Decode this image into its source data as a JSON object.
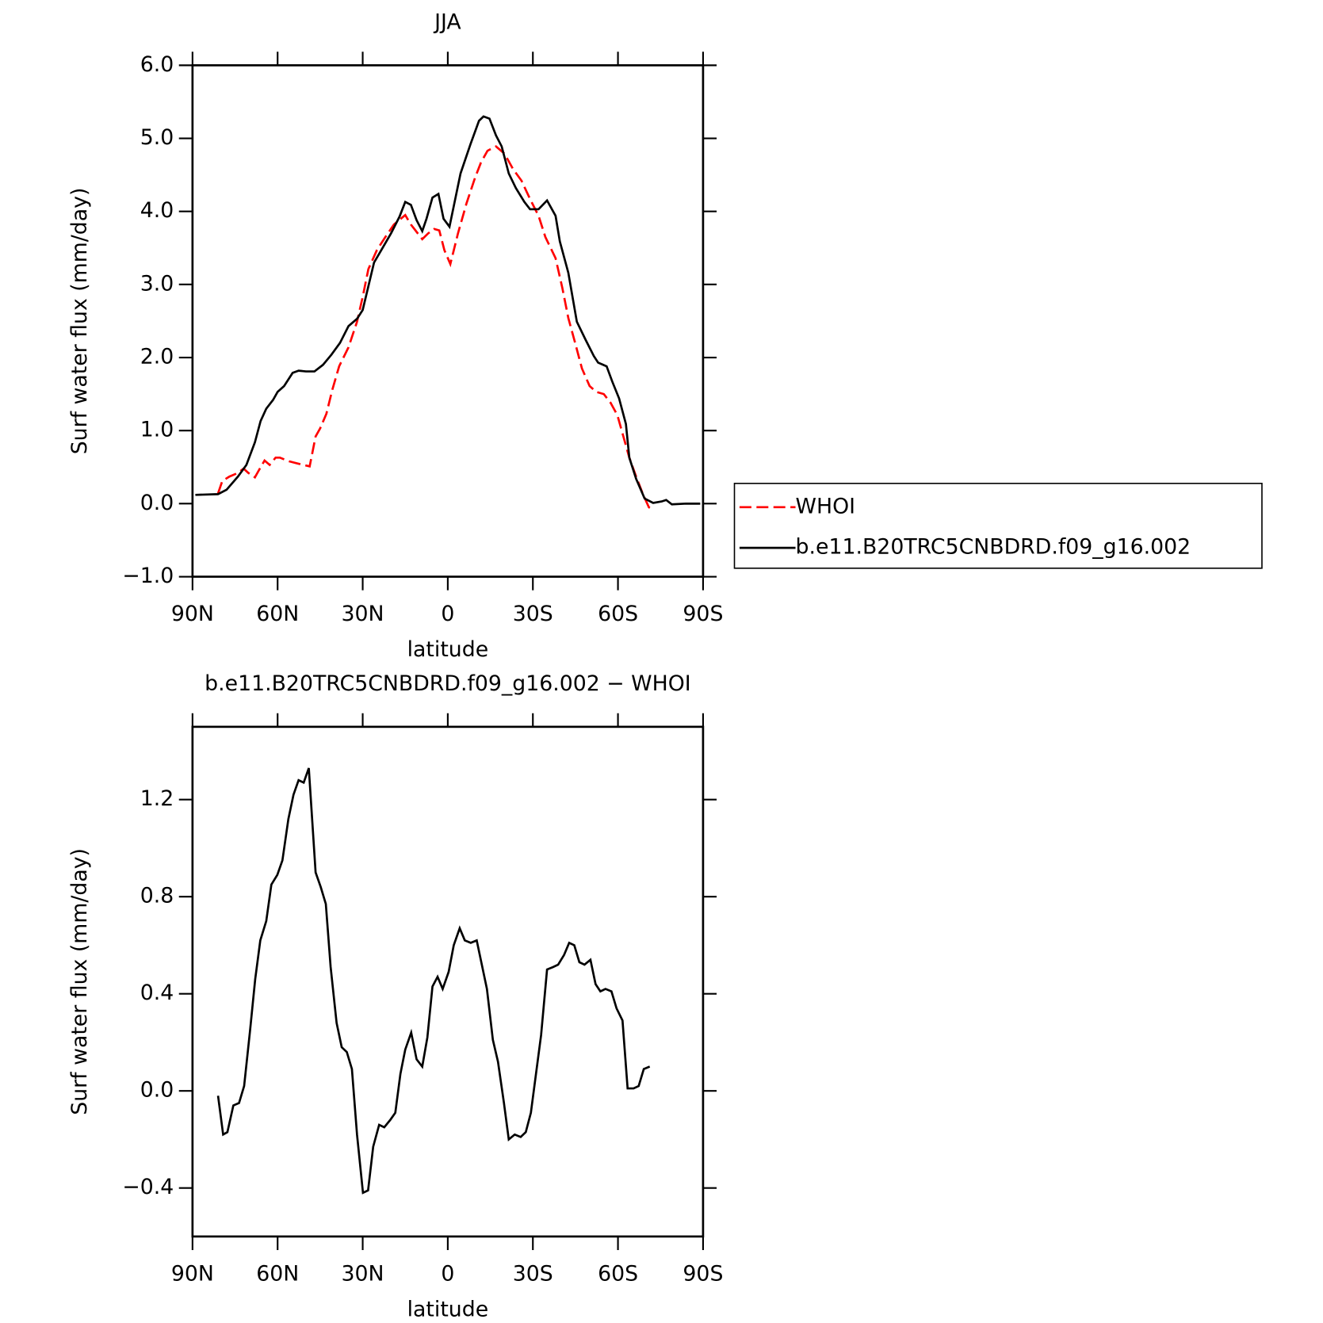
{
  "chart_data": [
    {
      "type": "line",
      "title": "JJA",
      "xlabel": "latitude",
      "ylabel": "Surf water flux (mm/day)",
      "xlim": [
        90,
        -90
      ],
      "xticks": [
        {
          "value": 90,
          "label": "90N"
        },
        {
          "value": 60,
          "label": "60N"
        },
        {
          "value": 30,
          "label": "30N"
        },
        0,
        {
          "value": -30,
          "label": "30S"
        },
        {
          "value": -60,
          "label": "60S"
        },
        {
          "value": -90,
          "label": "90S"
        }
      ],
      "ylim": [
        -1,
        6
      ],
      "yticks": [
        {
          "value": -1,
          "label": "−1.0"
        },
        {
          "value": 0,
          "label": "0.0"
        },
        {
          "value": 1,
          "label": "1.0"
        },
        {
          "value": 2,
          "label": "2.0"
        },
        {
          "value": 3,
          "label": "3.0"
        },
        {
          "value": 4,
          "label": "4.0"
        },
        {
          "value": 5,
          "label": "5.0"
        },
        {
          "value": 6,
          "label": "6.0"
        }
      ],
      "legend": "right",
      "series": [
        {
          "name": "WHOI",
          "color": "#ff0000",
          "dashed": true,
          "x": [
            81,
            79.5,
            77,
            74,
            72,
            70.3,
            68,
            66.7,
            64.6,
            62.8,
            60.7,
            59.2,
            56,
            53,
            50.8,
            48.7,
            46.6,
            45,
            42.8,
            40.7,
            38.3,
            35,
            32,
            30,
            28,
            25,
            22,
            19,
            15,
            13,
            9,
            6.9,
            4.8,
            3,
            1.2,
            -0.9,
            -3.6,
            -6.6,
            -9.6,
            -11.7,
            -14,
            -17,
            -20,
            -23,
            -26,
            -29,
            -32,
            -34.4,
            -38,
            -40.4,
            -42.5,
            -44.9,
            -47.3,
            -50,
            -52.3,
            -55,
            -57.4,
            -59.8,
            -61.9,
            -64,
            -66.4,
            -68.8,
            -70.9,
            -71.8
          ],
          "values": [
            0.14,
            0.31,
            0.37,
            0.42,
            0.48,
            0.42,
            0.36,
            0.45,
            0.59,
            0.53,
            0.63,
            0.63,
            0.58,
            0.55,
            0.53,
            0.51,
            0.92,
            1.03,
            1.23,
            1.56,
            1.88,
            2.14,
            2.49,
            2.83,
            3.21,
            3.47,
            3.65,
            3.82,
            3.95,
            3.82,
            3.62,
            3.7,
            3.76,
            3.74,
            3.47,
            3.28,
            3.7,
            4.11,
            4.46,
            4.67,
            4.83,
            4.89,
            4.79,
            4.58,
            4.42,
            4.17,
            3.94,
            3.65,
            3.36,
            2.95,
            2.54,
            2.2,
            1.85,
            1.61,
            1.53,
            1.5,
            1.38,
            1.21,
            0.92,
            0.63,
            0.37,
            0.13,
            -0.05,
            -0.07
          ]
        },
        {
          "name": "b.e11.B20TRC5CNBDRD.f09_g16.002",
          "color": "#000000",
          "dashed": false,
          "x": [
            89,
            81,
            78,
            74,
            71,
            68,
            66,
            64,
            61.6,
            60,
            57.7,
            54.7,
            52.6,
            50,
            47,
            44,
            41,
            38,
            35,
            32,
            30,
            26,
            23,
            20,
            17,
            15,
            13,
            11,
            9,
            7.5,
            5.4,
            3.3,
            1.5,
            -0.6,
            -4.5,
            -8,
            -11,
            -12.6,
            -14.7,
            -17,
            -19,
            -21.5,
            -24,
            -27,
            -29,
            -32,
            -35,
            -38,
            -39.5,
            -42.5,
            -45.5,
            -48.5,
            -51.5,
            -53,
            -56,
            -58,
            -60.4,
            -62.8,
            -64,
            -66.4,
            -69.4,
            -72.4,
            -75.4,
            -77,
            -79,
            -84,
            -89
          ],
          "values": [
            0.12,
            0.13,
            0.19,
            0.37,
            0.53,
            0.84,
            1.13,
            1.3,
            1.42,
            1.53,
            1.61,
            1.79,
            1.82,
            1.81,
            1.81,
            1.9,
            2.04,
            2.2,
            2.43,
            2.53,
            2.65,
            3.3,
            3.5,
            3.7,
            3.93,
            4.13,
            4.09,
            3.88,
            3.73,
            3.9,
            4.19,
            4.24,
            3.9,
            3.79,
            4.52,
            4.92,
            5.24,
            5.3,
            5.27,
            5.04,
            4.89,
            4.52,
            4.32,
            4.13,
            4.03,
            4.03,
            4.15,
            3.94,
            3.59,
            3.16,
            2.49,
            2.25,
            2.02,
            1.93,
            1.88,
            1.67,
            1.44,
            1.09,
            0.63,
            0.34,
            0.07,
            0.01,
            0.03,
            0.05,
            -0.01,
            0,
            0
          ]
        }
      ]
    },
    {
      "type": "line",
      "title": "b.e11.B20TRC5CNBDRD.f09_g16.002 − WHOI",
      "xlabel": "latitude",
      "ylabel": "Surf water flux (mm/day)",
      "xlim": [
        90,
        -90
      ],
      "xticks": [
        {
          "value": 90,
          "label": "90N"
        },
        {
          "value": 60,
          "label": "60N"
        },
        {
          "value": 30,
          "label": "30N"
        },
        0,
        {
          "value": -30,
          "label": "30S"
        },
        {
          "value": -60,
          "label": "60S"
        },
        {
          "value": -90,
          "label": "90S"
        }
      ],
      "ylim": [
        -0.6,
        1.5
      ],
      "yticks": [
        {
          "value": -0.4,
          "label": "−0.4"
        },
        {
          "value": 0,
          "label": "0.0"
        },
        0.4,
        0.8,
        1.2
      ],
      "series": [
        {
          "color": "#000000",
          "dashed": false,
          "x": [
            81,
            79.2,
            77.7,
            75.6,
            73.6,
            71.8,
            69.7,
            67.9,
            66.1,
            64,
            62.2,
            60.1,
            58.3,
            56.2,
            54.4,
            52.6,
            50.8,
            49,
            46.6,
            44.8,
            43,
            41.3,
            39.2,
            37.4,
            35.6,
            33.8,
            32,
            29.9,
            28.1,
            26.3,
            24.2,
            22.4,
            20.3,
            18.5,
            16.7,
            15,
            12.9,
            11,
            9,
            7.2,
            5.4,
            3.6,
            1.8,
            -0.3,
            -2.1,
            -4.2,
            -6,
            -8.1,
            -10.2,
            -12,
            -13.8,
            -15.9,
            -17.7,
            -19.8,
            -21.5,
            -23.6,
            -25.7,
            -27.5,
            -29.3,
            -31.1,
            -32.9,
            -35,
            -37.1,
            -38.9,
            -41,
            -42.8,
            -44.6,
            -46.4,
            -48.2,
            -50.3,
            -52.1,
            -53.8,
            -55.6,
            -57.7,
            -59.5,
            -61.6,
            -63.4,
            -65.5,
            -67.3,
            -69.1,
            -71.2
          ],
          "values": [
            -0.02,
            -0.18,
            -0.17,
            -0.06,
            -0.05,
            0.02,
            0.25,
            0.46,
            0.62,
            0.7,
            0.85,
            0.89,
            0.95,
            1.12,
            1.22,
            1.28,
            1.27,
            1.33,
            0.9,
            0.84,
            0.77,
            0.51,
            0.28,
            0.18,
            0.16,
            0.09,
            -0.18,
            -0.42,
            -0.41,
            -0.23,
            -0.14,
            -0.15,
            -0.12,
            -0.09,
            0.07,
            0.17,
            0.24,
            0.13,
            0.1,
            0.22,
            0.43,
            0.47,
            0.42,
            0.49,
            0.6,
            0.67,
            0.62,
            0.61,
            0.62,
            0.52,
            0.42,
            0.21,
            0.12,
            -0.05,
            -0.2,
            -0.18,
            -0.19,
            -0.17,
            -0.09,
            0.07,
            0.23,
            0.5,
            0.51,
            0.52,
            0.56,
            0.61,
            0.6,
            0.53,
            0.52,
            0.54,
            0.44,
            0.41,
            0.42,
            0.41,
            0.34,
            0.29,
            0.01,
            0.01,
            0.02,
            0.09,
            0.1
          ]
        }
      ]
    }
  ]
}
